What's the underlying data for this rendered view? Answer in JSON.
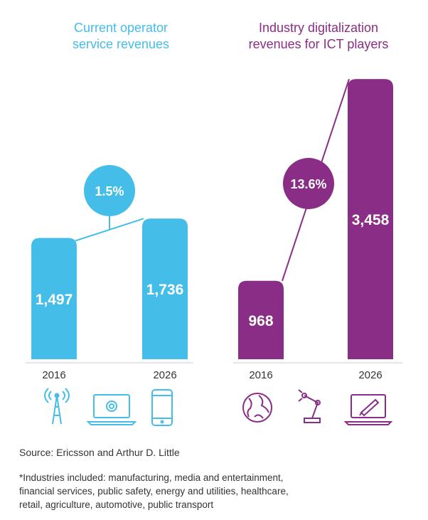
{
  "chart_data": [
    {
      "type": "bar",
      "title": "Current operator service revenues",
      "title_lines": [
        "Current operator",
        "service revenues"
      ],
      "categories": [
        "2016",
        "2026"
      ],
      "values": [
        1497,
        1736
      ],
      "value_labels": [
        "1,497",
        "1,736"
      ],
      "growth_label": "1.5%",
      "color": "#45bde9",
      "ylim": [
        0,
        3600
      ],
      "icons": [
        "cell-tower-icon",
        "laptop-email-icon",
        "smartphone-icon"
      ]
    },
    {
      "type": "bar",
      "title": "Industry digitalization revenues for ICT players",
      "title_lines": [
        "Industry digitalization",
        "revenues for ICT players"
      ],
      "categories": [
        "2016",
        "2026"
      ],
      "values": [
        968,
        3458
      ],
      "value_labels": [
        "968",
        "3,458"
      ],
      "growth_label": "13.6%",
      "color": "#8a2d86",
      "ylim": [
        0,
        3600
      ],
      "icons": [
        "globe-icon",
        "robot-arm-icon",
        "laptop-pen-icon"
      ]
    }
  ],
  "source": "Source: Ericsson and Arthur D. Little",
  "footnote_lines": [
    "*Industries included: manufacturing, media and entertainment,",
    "financial services, public safety, energy and utilities, healthcare,",
    "retail, agriculture, automotive, public transport"
  ]
}
